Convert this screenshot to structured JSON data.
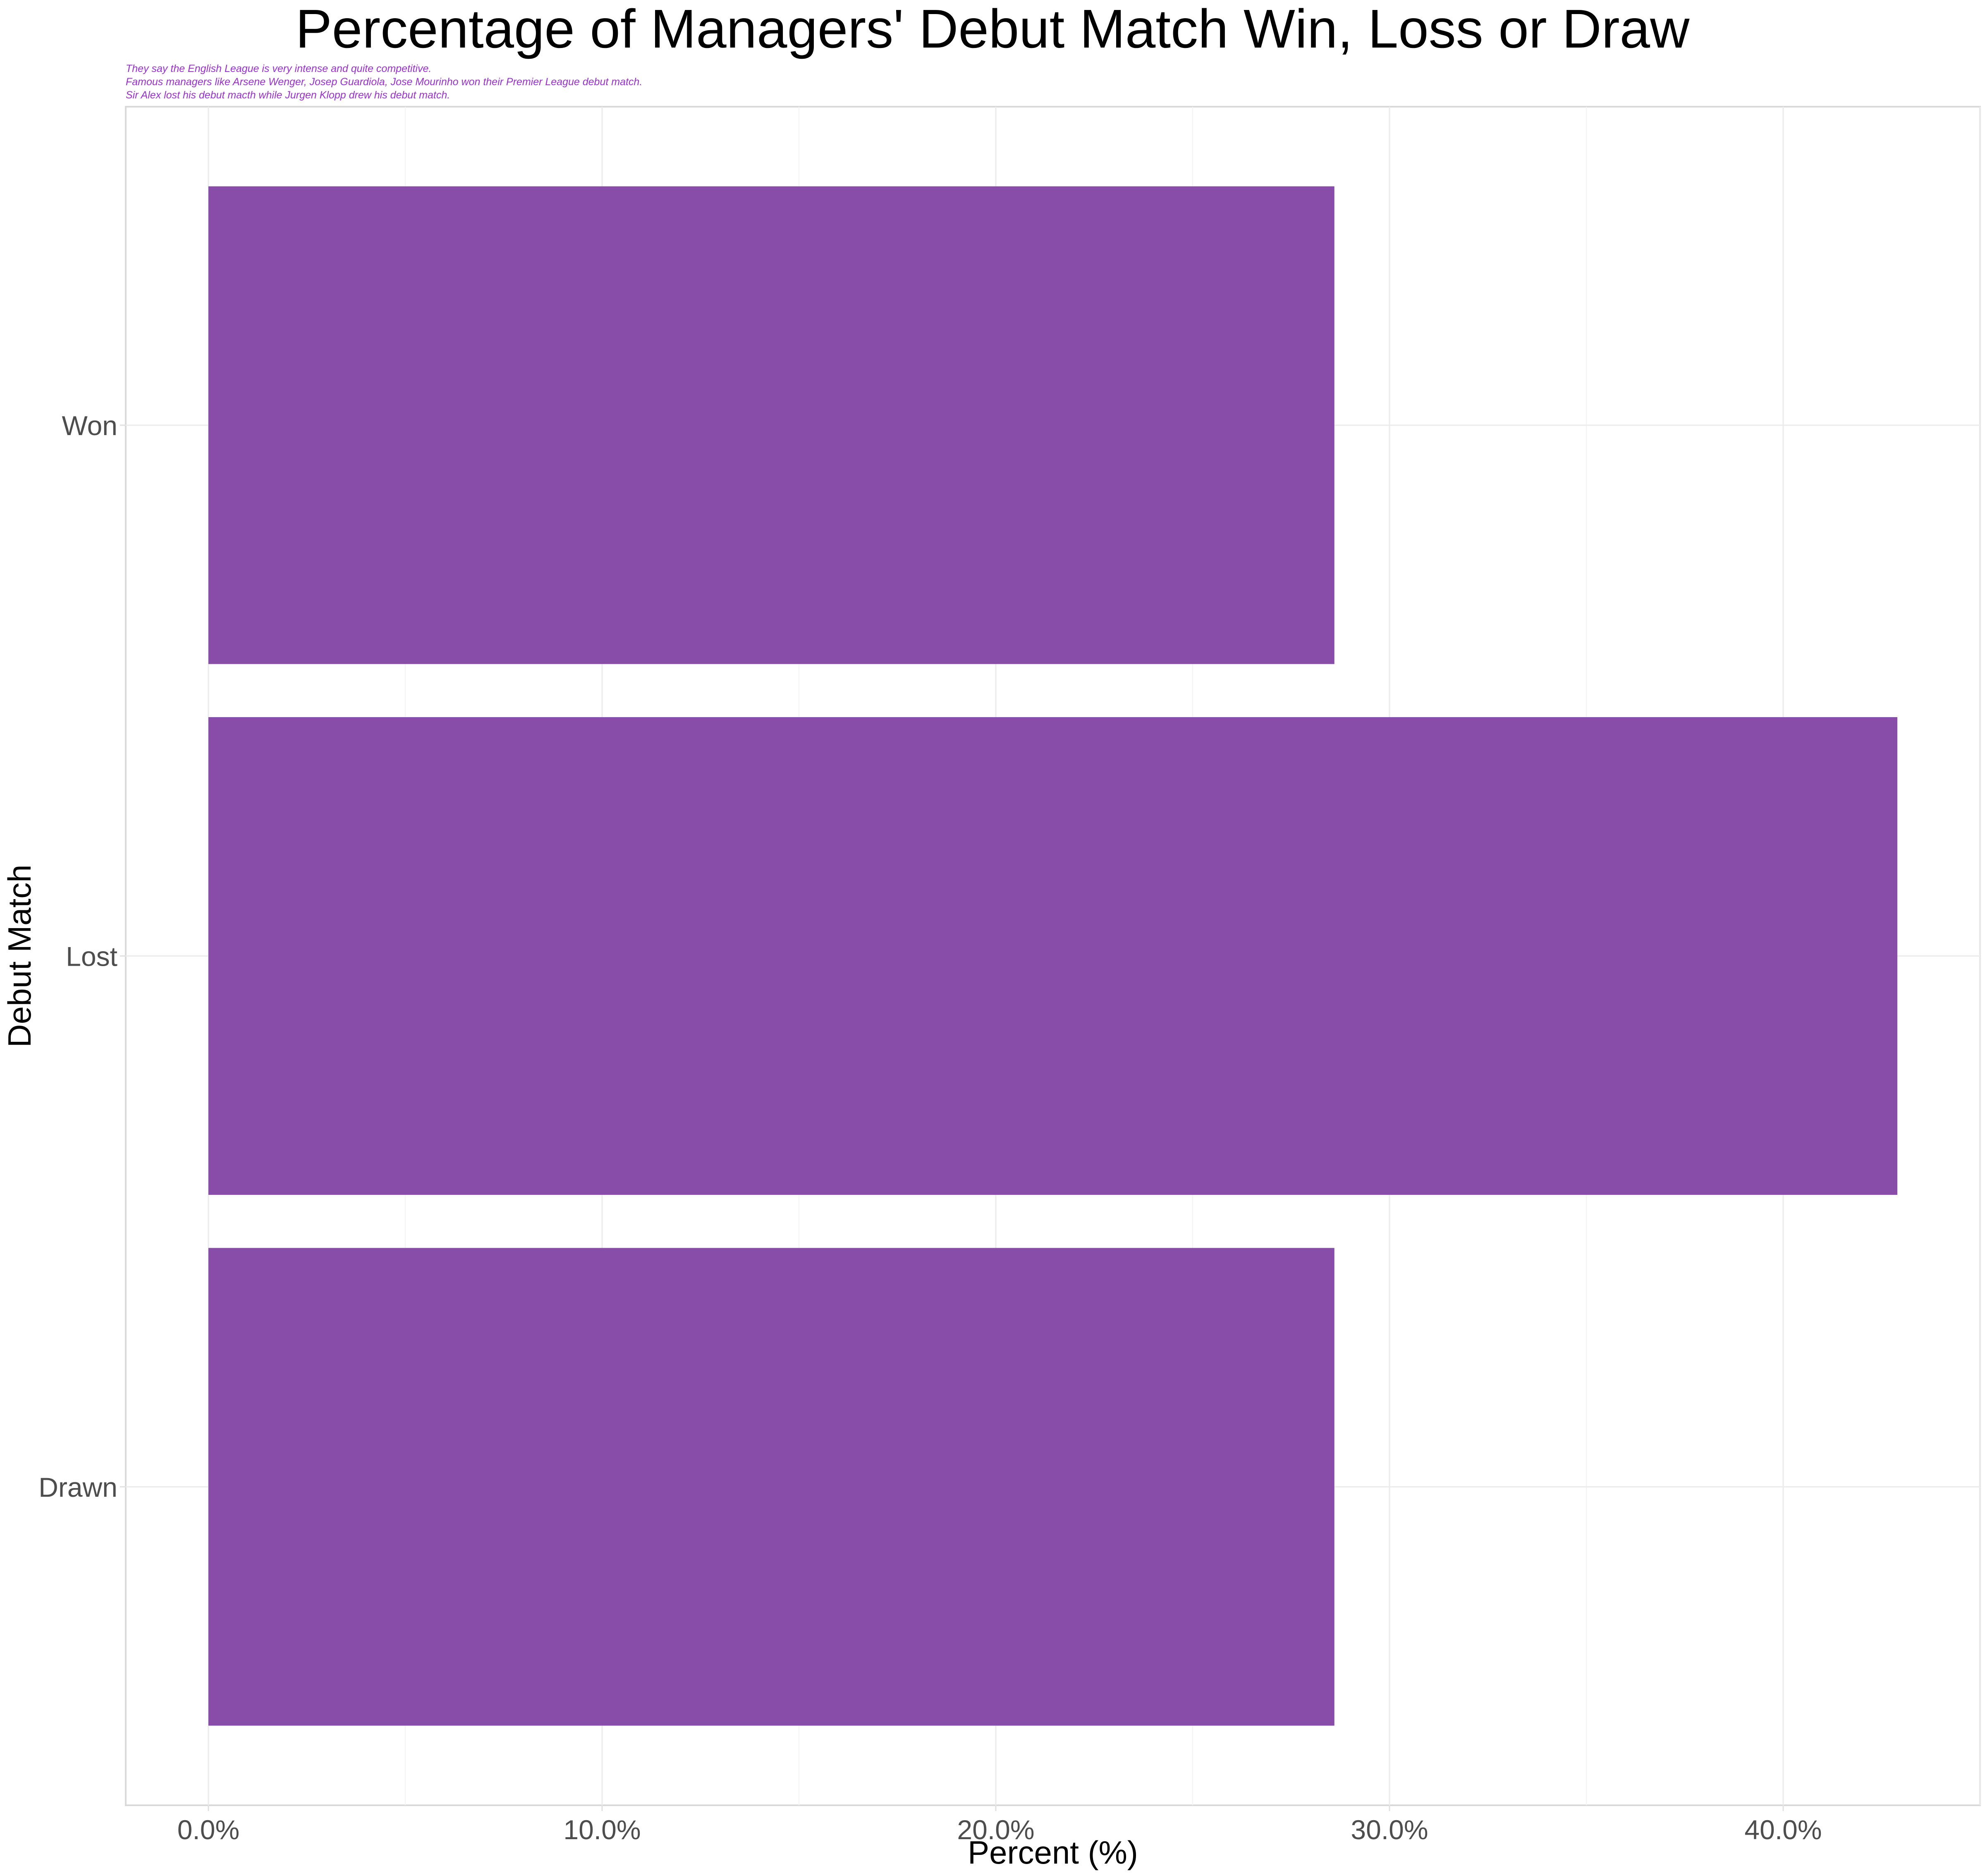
{
  "chart_data": {
    "type": "bar",
    "orientation": "horizontal",
    "title": "Percentage of Managers' Debut Match Win, Loss or Draw",
    "subtitle_lines": [
      "They say the English League is very intense and quite competitive.",
      "Famous managers like Arsene Wenger, Josep Guardiola, Jose Mourinho won their Premier League debut match.",
      "Sir Alex lost his debut macth while Jurgen Klopp drew his debut match."
    ],
    "categories": [
      "Won",
      "Lost",
      "Drawn"
    ],
    "values": [
      28.6,
      42.9,
      28.6
    ],
    "xlabel": "Percent (%)",
    "ylabel": "Debut Match",
    "xlim": [
      -2.1,
      45.0
    ],
    "x_ticks": [
      0,
      10,
      20,
      30,
      40
    ],
    "x_tick_labels": [
      "0.0%",
      "10.0%",
      "20.0%",
      "30.0%",
      "40.0%"
    ],
    "grid": true,
    "bar_color": "#874DA8",
    "subtitle_color": "#9B30D0",
    "legend": "none"
  }
}
